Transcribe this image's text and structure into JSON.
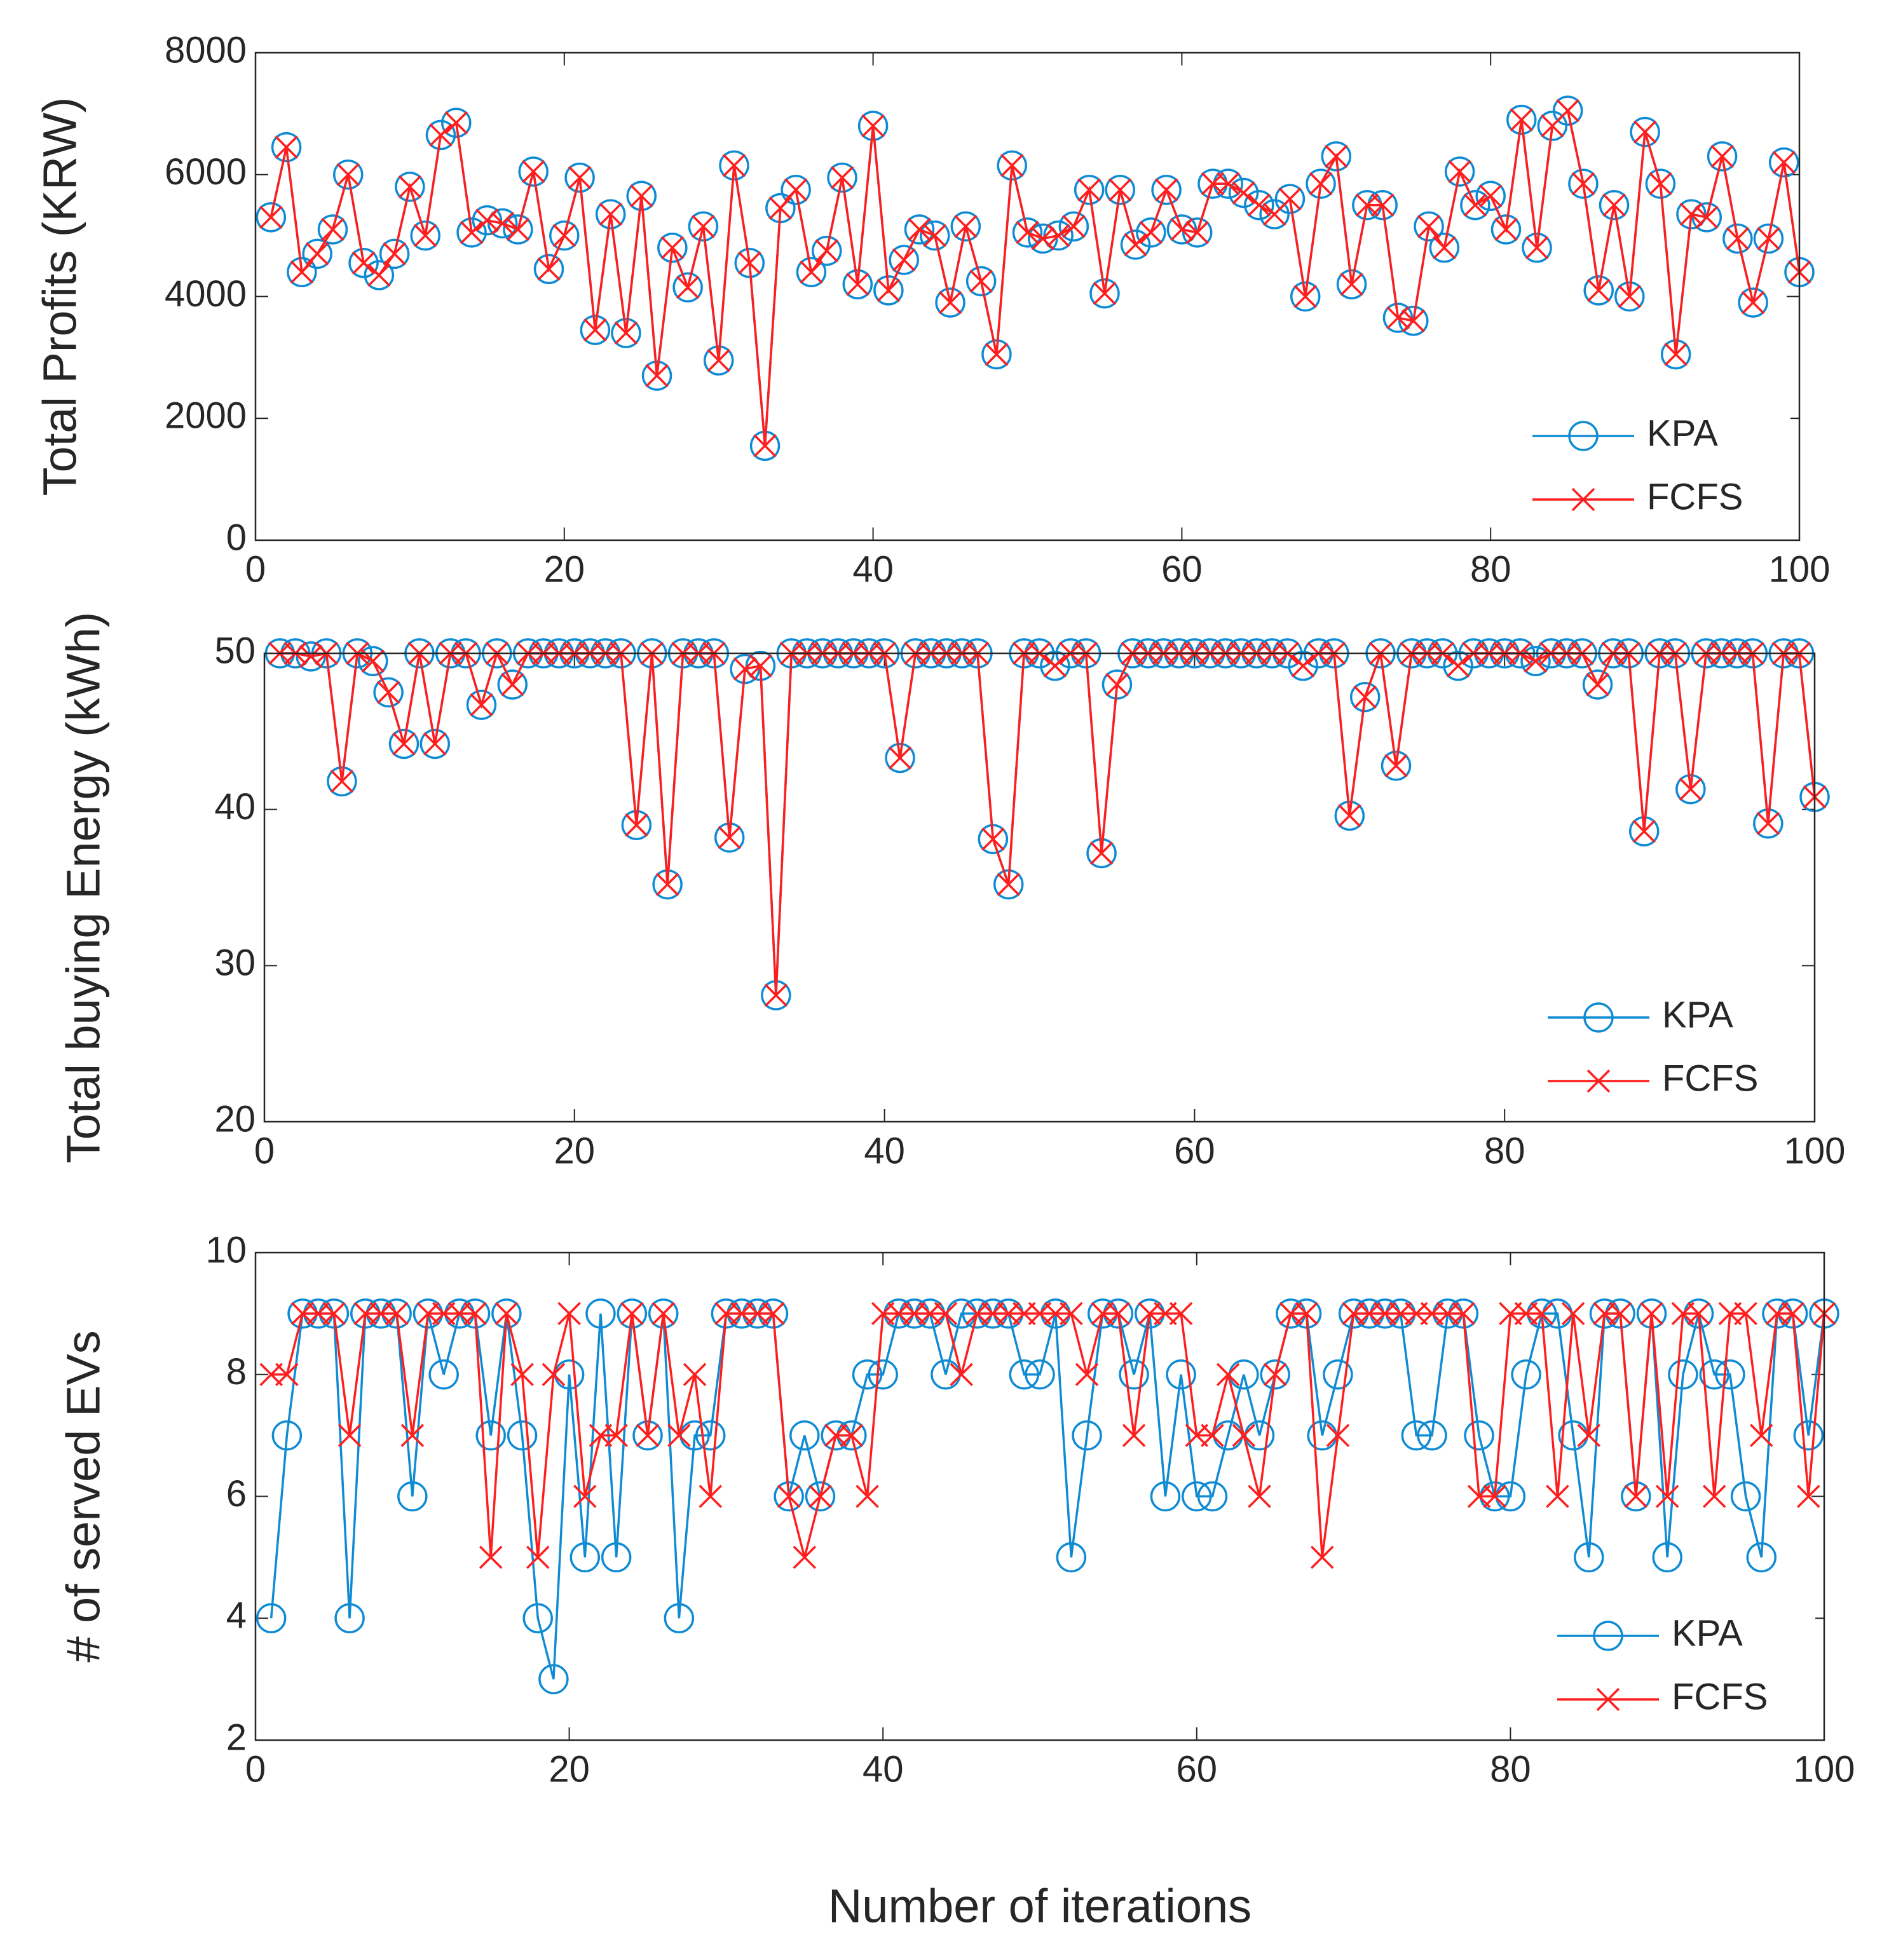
{
  "chart_data": [
    {
      "type": "line",
      "ylabel": "Total Profits (KRW)",
      "x": [
        1,
        2,
        3,
        4,
        5,
        6,
        7,
        8,
        9,
        10,
        11,
        12,
        13,
        14,
        15,
        16,
        17,
        18,
        19,
        20,
        21,
        22,
        23,
        24,
        25,
        26,
        27,
        28,
        29,
        30,
        31,
        32,
        33,
        34,
        35,
        36,
        37,
        38,
        39,
        40,
        41,
        42,
        43,
        44,
        45,
        46,
        47,
        48,
        49,
        50,
        51,
        52,
        53,
        54,
        55,
        56,
        57,
        58,
        59,
        60,
        61,
        62,
        63,
        64,
        65,
        66,
        67,
        68,
        69,
        70,
        71,
        72,
        73,
        74,
        75,
        76,
        77,
        78,
        79,
        80,
        81,
        82,
        83,
        84,
        85,
        86,
        87,
        88,
        89,
        90,
        91,
        92,
        93,
        94,
        95,
        96,
        97,
        98,
        99,
        100
      ],
      "xlim": [
        0,
        100
      ],
      "xticks": [
        0,
        20,
        40,
        60,
        80,
        100
      ],
      "ylim": [
        0,
        8000
      ],
      "yticks": [
        0,
        2000,
        4000,
        6000,
        8000
      ],
      "legend": "lower right",
      "series": [
        {
          "name": "KPA",
          "color": "#0f8bd4",
          "marker": "circle",
          "values": [
            5300,
            6450,
            4400,
            4700,
            5100,
            6000,
            4550,
            4350,
            4700,
            5800,
            5000,
            6650,
            6850,
            5050,
            5250,
            5200,
            5100,
            6050,
            4450,
            5000,
            5950,
            3450,
            5350,
            3400,
            5650,
            2700,
            4800,
            4150,
            5150,
            2950,
            6150,
            4550,
            1550,
            5450,
            5750,
            4400,
            4750,
            5950,
            4200,
            6800,
            4100,
            4600,
            5100,
            5000,
            3900,
            5150,
            4250,
            3050,
            6150,
            5050,
            4950,
            5000,
            5150,
            5750,
            4050,
            5750,
            4850,
            5050,
            5750,
            5100,
            5050,
            5850,
            5850,
            5700,
            5500,
            5350,
            5600,
            4000,
            5850,
            6300,
            4200,
            5500,
            5500,
            3650,
            3600,
            5150,
            4800,
            6050,
            5500,
            5650,
            5100,
            6900,
            4800,
            6800,
            7050,
            5850,
            4100,
            5500,
            4000,
            6700,
            5850,
            3050,
            5350,
            5300,
            6300,
            4950,
            3900,
            4950,
            6200,
            4400
          ]
        },
        {
          "name": "FCFS",
          "color": "#ff1e1e",
          "marker": "cross",
          "values": [
            5300,
            6450,
            4400,
            4700,
            5100,
            6000,
            4550,
            4350,
            4700,
            5800,
            5000,
            6650,
            6850,
            5050,
            5250,
            5200,
            5100,
            6050,
            4450,
            5000,
            5950,
            3450,
            5350,
            3400,
            5650,
            2700,
            4800,
            4150,
            5150,
            2950,
            6150,
            4550,
            1550,
            5450,
            5750,
            4400,
            4750,
            5950,
            4200,
            6800,
            4100,
            4600,
            5100,
            5000,
            3900,
            5150,
            4250,
            3050,
            6150,
            5050,
            4950,
            5000,
            5150,
            5750,
            4050,
            5750,
            4850,
            5050,
            5750,
            5100,
            5050,
            5850,
            5850,
            5700,
            5500,
            5350,
            5600,
            4000,
            5850,
            6300,
            4200,
            5500,
            5500,
            3650,
            3600,
            5150,
            4800,
            6050,
            5500,
            5650,
            5100,
            6900,
            4800,
            6800,
            7050,
            5850,
            4100,
            5500,
            4000,
            6700,
            5850,
            3050,
            5350,
            5300,
            6300,
            4950,
            3900,
            4950,
            6200,
            4400
          ]
        }
      ]
    },
    {
      "type": "line",
      "ylabel": "Total buying Energy (kWh)",
      "x": [
        1,
        2,
        3,
        4,
        5,
        6,
        7,
        8,
        9,
        10,
        11,
        12,
        13,
        14,
        15,
        16,
        17,
        18,
        19,
        20,
        21,
        22,
        23,
        24,
        25,
        26,
        27,
        28,
        29,
        30,
        31,
        32,
        33,
        34,
        35,
        36,
        37,
        38,
        39,
        40,
        41,
        42,
        43,
        44,
        45,
        46,
        47,
        48,
        49,
        50,
        51,
        52,
        53,
        54,
        55,
        56,
        57,
        58,
        59,
        60,
        61,
        62,
        63,
        64,
        65,
        66,
        67,
        68,
        69,
        70,
        71,
        72,
        73,
        74,
        75,
        76,
        77,
        78,
        79,
        80,
        81,
        82,
        83,
        84,
        85,
        86,
        87,
        88,
        89,
        90,
        91,
        92,
        93,
        94,
        95,
        96,
        97,
        98,
        99,
        100
      ],
      "xlim": [
        0,
        100
      ],
      "xticks": [
        0,
        20,
        40,
        60,
        80,
        100
      ],
      "ylim": [
        20,
        50
      ],
      "yticks": [
        20,
        30,
        40,
        50
      ],
      "legend": "lower right",
      "series": [
        {
          "name": "KPA",
          "color": "#0f8bd4",
          "marker": "circle",
          "values": [
            50,
            50,
            49.8,
            50,
            41.8,
            50,
            49.5,
            47.5,
            44.2,
            50,
            44.2,
            50,
            50,
            46.7,
            50,
            48,
            50,
            50,
            50,
            50,
            50,
            50,
            50,
            39,
            50,
            35.2,
            50,
            50,
            50,
            38.2,
            49,
            49.2,
            28.1,
            50,
            50,
            50,
            50,
            50,
            50,
            50,
            43.3,
            50,
            50,
            50,
            50,
            50,
            38.1,
            35.2,
            50,
            50,
            49.2,
            50,
            50,
            37.2,
            48,
            50,
            50,
            50,
            50,
            50,
            50,
            50,
            50,
            50,
            50,
            50,
            49.2,
            50,
            50,
            39.6,
            47.2,
            50,
            42.8,
            50,
            50,
            50,
            49.2,
            50,
            50,
            50,
            50,
            49.5,
            50,
            50,
            50,
            48,
            50,
            50,
            38.6,
            50,
            50,
            41.3,
            50,
            50,
            50,
            50,
            39.1,
            50,
            50,
            40.8
          ]
        },
        {
          "name": "FCFS",
          "color": "#ff1e1e",
          "marker": "cross",
          "values": [
            50,
            50,
            49.8,
            50,
            41.8,
            50,
            49.5,
            47.5,
            44.2,
            50,
            44.2,
            50,
            50,
            46.7,
            50,
            48,
            50,
            50,
            50,
            50,
            50,
            50,
            50,
            39,
            50,
            35.2,
            50,
            50,
            50,
            38.2,
            49,
            49.2,
            28.1,
            50,
            50,
            50,
            50,
            50,
            50,
            50,
            43.3,
            50,
            50,
            50,
            50,
            50,
            38.1,
            35.2,
            50,
            50,
            49.2,
            50,
            50,
            37.2,
            48,
            50,
            50,
            50,
            50,
            50,
            50,
            50,
            50,
            50,
            50,
            50,
            49.2,
            50,
            50,
            39.6,
            47.2,
            50,
            42.8,
            50,
            50,
            50,
            49.2,
            50,
            50,
            50,
            50,
            49.5,
            50,
            50,
            50,
            48,
            50,
            50,
            38.6,
            50,
            50,
            41.3,
            50,
            50,
            50,
            50,
            39.1,
            50,
            50,
            40.8
          ]
        }
      ]
    },
    {
      "type": "line",
      "ylabel": "# of served EVs",
      "xlabel": "Number of iterations",
      "x": [
        1,
        2,
        3,
        4,
        5,
        6,
        7,
        8,
        9,
        10,
        11,
        12,
        13,
        14,
        15,
        16,
        17,
        18,
        19,
        20,
        21,
        22,
        23,
        24,
        25,
        26,
        27,
        28,
        29,
        30,
        31,
        32,
        33,
        34,
        35,
        36,
        37,
        38,
        39,
        40,
        41,
        42,
        43,
        44,
        45,
        46,
        47,
        48,
        49,
        50,
        51,
        52,
        53,
        54,
        55,
        56,
        57,
        58,
        59,
        60,
        61,
        62,
        63,
        64,
        65,
        66,
        67,
        68,
        69,
        70,
        71,
        72,
        73,
        74,
        75,
        76,
        77,
        78,
        79,
        80,
        81,
        82,
        83,
        84,
        85,
        86,
        87,
        88,
        89,
        90,
        91,
        92,
        93,
        94,
        95,
        96,
        97,
        98,
        99,
        100
      ],
      "xlim": [
        0,
        100
      ],
      "xticks": [
        0,
        20,
        40,
        60,
        80,
        100
      ],
      "ylim": [
        2,
        10
      ],
      "yticks": [
        2,
        4,
        6,
        8,
        10
      ],
      "legend": "lower right",
      "series": [
        {
          "name": "KPA",
          "color": "#0f8bd4",
          "marker": "circle",
          "values": [
            4,
            7,
            9,
            9,
            9,
            4,
            9,
            9,
            9,
            6,
            9,
            8,
            9,
            9,
            7,
            9,
            7,
            4,
            3,
            8,
            5,
            9,
            5,
            9,
            7,
            9,
            4,
            7,
            7,
            9,
            9,
            9,
            9,
            6,
            7,
            6,
            7,
            7,
            8,
            8,
            9,
            9,
            9,
            8,
            9,
            9,
            9,
            9,
            8,
            8,
            9,
            5,
            7,
            9,
            9,
            8,
            9,
            6,
            8,
            6,
            6,
            7,
            8,
            7,
            8,
            9,
            9,
            7,
            8,
            9,
            9,
            9,
            9,
            7,
            7,
            9,
            9,
            7,
            6,
            6,
            8,
            9,
            9,
            7,
            5,
            9,
            9,
            6,
            9,
            5,
            8,
            9,
            8,
            8,
            6,
            5,
            9,
            9,
            7,
            9
          ]
        },
        {
          "name": "FCFS",
          "color": "#ff1e1e",
          "marker": "cross",
          "values": [
            8,
            8,
            9,
            9,
            9,
            7,
            9,
            9,
            9,
            7,
            9,
            9,
            9,
            9,
            5,
            9,
            8,
            5,
            8,
            9,
            6,
            7,
            7,
            9,
            7,
            9,
            7,
            8,
            6,
            9,
            9,
            9,
            9,
            6,
            5,
            6,
            7,
            7,
            6,
            9,
            9,
            9,
            9,
            9,
            8,
            9,
            9,
            9,
            9,
            9,
            9,
            9,
            8,
            9,
            9,
            7,
            9,
            9,
            9,
            7,
            7,
            8,
            7,
            6,
            8,
            9,
            9,
            5,
            7,
            9,
            9,
            9,
            9,
            9,
            9,
            9,
            9,
            6,
            6,
            9,
            9,
            9,
            6,
            9,
            7,
            9,
            9,
            6,
            9,
            6,
            9,
            9,
            6,
            9,
            9,
            7,
            9,
            9,
            6,
            9
          ]
        }
      ]
    }
  ]
}
